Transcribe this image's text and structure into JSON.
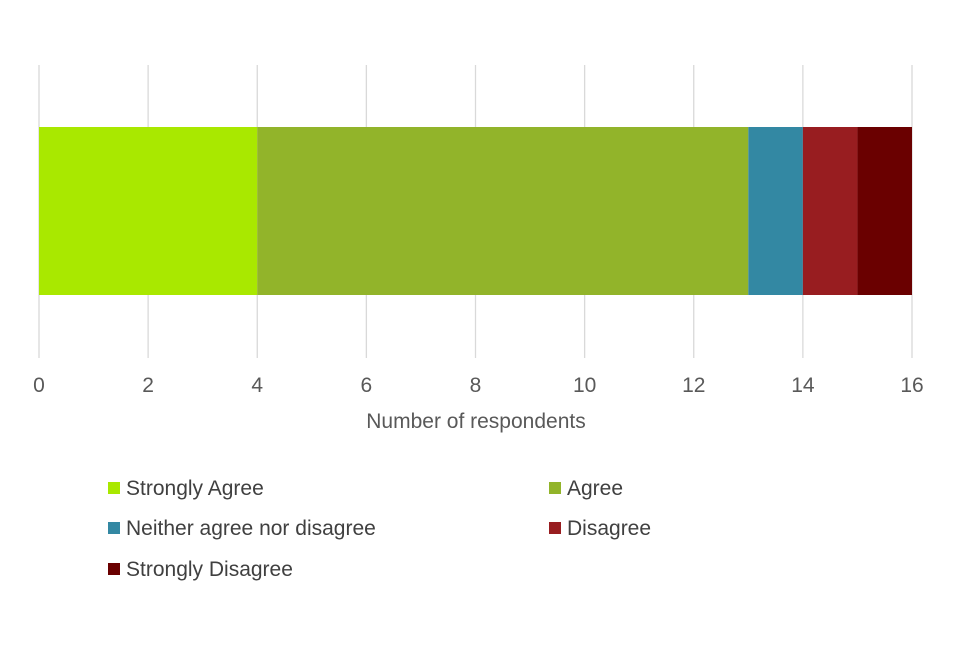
{
  "chart_data": {
    "type": "bar",
    "orientation": "horizontal",
    "stacked": true,
    "title": "",
    "xlabel": "Number of respondents",
    "ylabel": "",
    "xlim": [
      0,
      16
    ],
    "xticks": [
      0,
      2,
      4,
      6,
      8,
      10,
      12,
      14,
      16
    ],
    "grid": true,
    "legend_position": "bottom",
    "categories": [
      ""
    ],
    "series": [
      {
        "name": "Strongly Agree",
        "values": [
          4
        ],
        "color": "#a9e800"
      },
      {
        "name": "Agree",
        "values": [
          9
        ],
        "color": "#92b42a"
      },
      {
        "name": "Neither agree nor disagree",
        "values": [
          1
        ],
        "color": "#3388a3"
      },
      {
        "name": "Disagree",
        "values": [
          1
        ],
        "color": "#981d20"
      },
      {
        "name": "Strongly Disagree",
        "values": [
          1
        ],
        "color": "#6a0000"
      }
    ]
  }
}
